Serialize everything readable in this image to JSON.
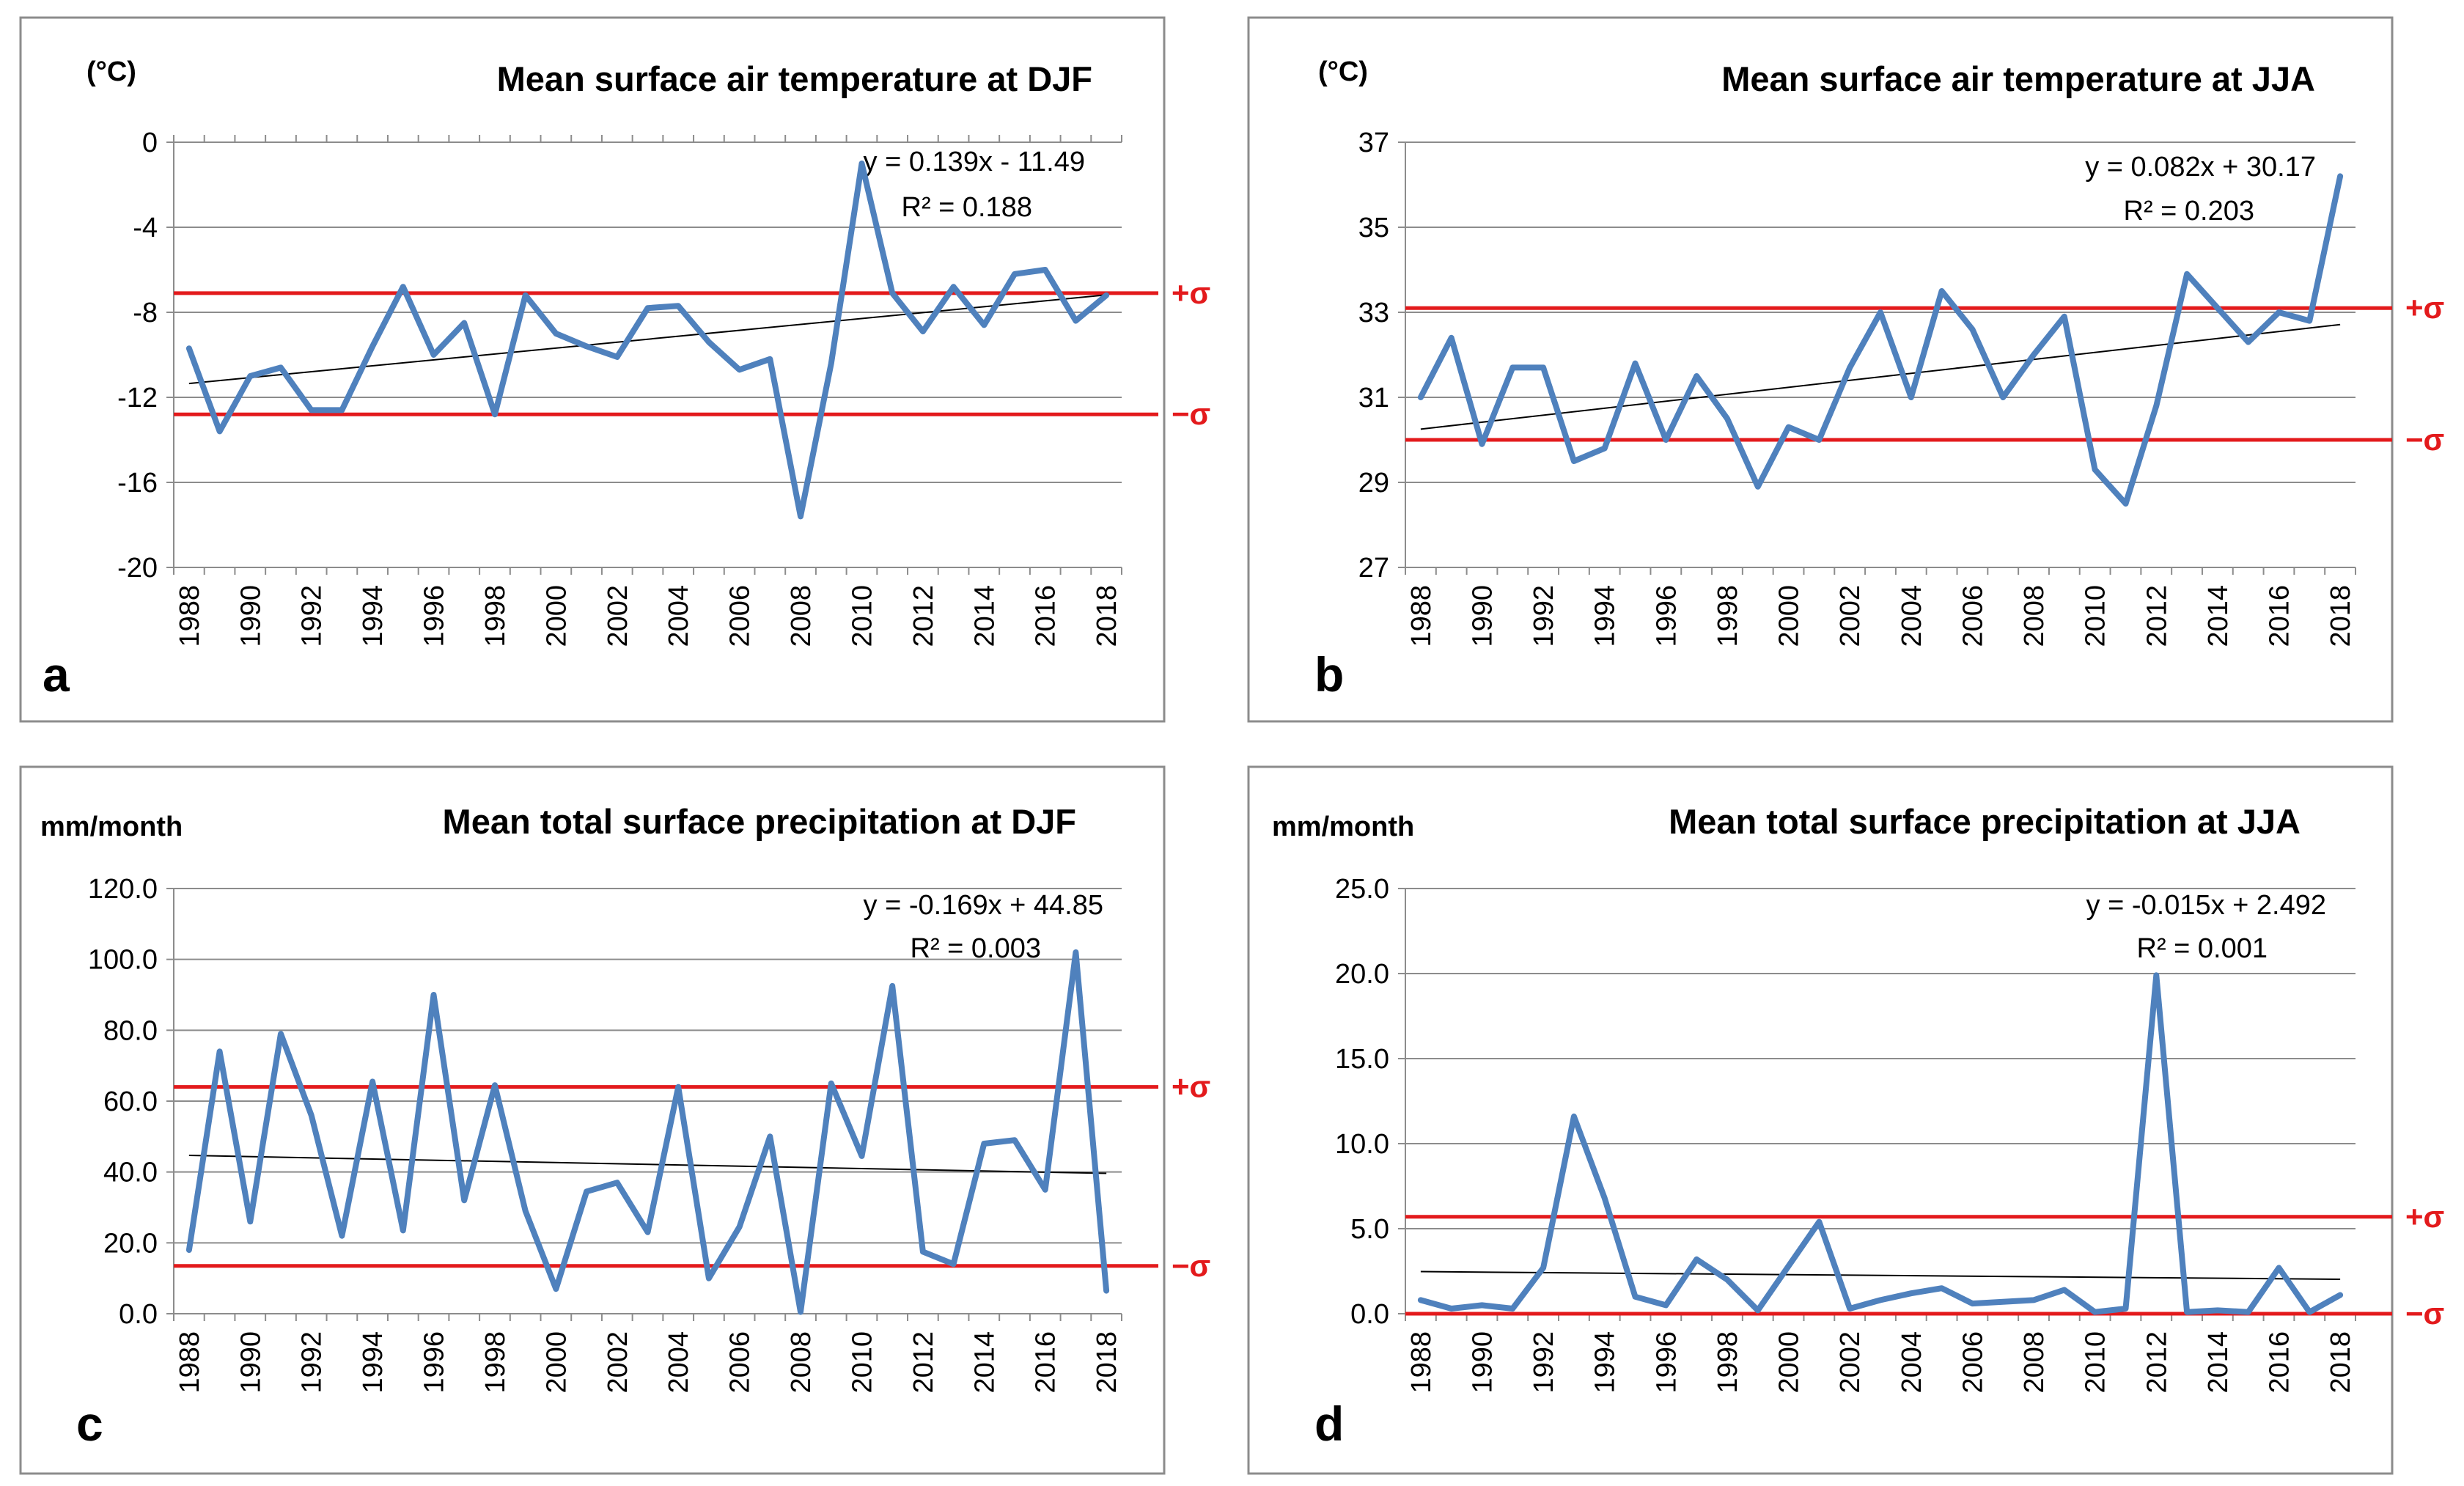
{
  "colors": {
    "series": "#4f81bd",
    "sigma": "#e31a1c",
    "trend": "#000000",
    "frame": "#8c8c8c"
  },
  "chart_data": [
    {
      "id": "a",
      "type": "line",
      "panel_label": "a",
      "title": "Mean surface air temperature at DJF",
      "unit": "(°C)",
      "ylim": [
        -20,
        0
      ],
      "yticks": [
        0,
        -4,
        -8,
        -12,
        -16,
        -20
      ],
      "ytick_labels": [
        "0",
        "-4",
        "-8",
        "-12",
        "-16",
        "-20"
      ],
      "x": [
        1988,
        1989,
        1990,
        1991,
        1992,
        1993,
        1994,
        1995,
        1996,
        1997,
        1998,
        1999,
        2000,
        2001,
        2002,
        2003,
        2004,
        2005,
        2006,
        2007,
        2008,
        2009,
        2010,
        2011,
        2012,
        2013,
        2014,
        2015,
        2016,
        2017,
        2018
      ],
      "xtick_labels": [
        "1988",
        "1990",
        "1992",
        "1994",
        "1996",
        "1998",
        "2000",
        "2002",
        "2004",
        "2006",
        "2008",
        "2010",
        "2012",
        "2014",
        "2016",
        "2018"
      ],
      "values": [
        -9.7,
        -13.6,
        -11.0,
        -10.6,
        -12.6,
        -12.6,
        -9.6,
        -6.8,
        -10.0,
        -8.5,
        -12.8,
        -7.2,
        -9.0,
        -9.6,
        -10.1,
        -7.8,
        -7.7,
        -9.4,
        -10.7,
        -10.2,
        -17.6,
        -10.4,
        -1.0,
        -7.1,
        -8.9,
        -6.8,
        -8.6,
        -6.2,
        -6.0,
        -8.4,
        -7.2
      ],
      "trend": {
        "slope": 0.139,
        "intercept": -11.49
      },
      "trend_label": "y = 0.139x - 11.49",
      "r2_label": "R² = 0.188",
      "sigma_plus": -7.1,
      "sigma_minus": -12.8,
      "sigma_plus_label": "+σ",
      "sigma_minus_label": "−σ"
    },
    {
      "id": "b",
      "type": "line",
      "panel_label": "b",
      "title": "Mean surface air temperature at JJA",
      "unit": "(°C)",
      "ylim": [
        27,
        37
      ],
      "yticks": [
        37,
        35,
        33,
        31,
        29,
        27
      ],
      "ytick_labels": [
        "37",
        "35",
        "33",
        "31",
        "29",
        "27"
      ],
      "x": [
        1988,
        1989,
        1990,
        1991,
        1992,
        1993,
        1994,
        1995,
        1996,
        1997,
        1998,
        1999,
        2000,
        2001,
        2002,
        2003,
        2004,
        2005,
        2006,
        2007,
        2008,
        2009,
        2010,
        2011,
        2012,
        2013,
        2014,
        2015,
        2016,
        2017,
        2018
      ],
      "xtick_labels": [
        "1988",
        "1990",
        "1992",
        "1994",
        "1996",
        "1998",
        "2000",
        "2002",
        "2004",
        "2006",
        "2008",
        "2010",
        "2012",
        "2014",
        "2016",
        "2018"
      ],
      "values": [
        31.0,
        32.4,
        29.9,
        31.7,
        31.7,
        29.5,
        29.8,
        31.8,
        30.0,
        31.5,
        30.5,
        28.9,
        30.3,
        30.0,
        31.7,
        33.0,
        31.0,
        33.5,
        32.6,
        31.0,
        32.0,
        32.9,
        29.3,
        28.5,
        30.8,
        33.9,
        33.1,
        32.3,
        33.0,
        32.8,
        36.2
      ],
      "trend": {
        "slope": 0.082,
        "intercept": 30.17
      },
      "trend_label": "y = 0.082x + 30.17",
      "r2_label": "R² = 0.203",
      "sigma_plus": 33.1,
      "sigma_minus": 30.0,
      "sigma_plus_label": "+σ",
      "sigma_minus_label": "−σ"
    },
    {
      "id": "c",
      "type": "line",
      "panel_label": "c",
      "title": "Mean total surface precipitation at DJF",
      "unit": "mm/month",
      "ylim": [
        0,
        120
      ],
      "yticks": [
        120,
        100,
        80,
        60,
        40,
        20,
        0
      ],
      "ytick_labels": [
        "120.0",
        "100.0",
        "80.0",
        "60.0",
        "40.0",
        "20.0",
        "0.0"
      ],
      "x": [
        1988,
        1989,
        1990,
        1991,
        1992,
        1993,
        1994,
        1995,
        1996,
        1997,
        1998,
        1999,
        2000,
        2001,
        2002,
        2003,
        2004,
        2005,
        2006,
        2007,
        2008,
        2009,
        2010,
        2011,
        2012,
        2013,
        2014,
        2015,
        2016,
        2017,
        2018
      ],
      "xtick_labels": [
        "1988",
        "1990",
        "1992",
        "1994",
        "1996",
        "1998",
        "2000",
        "2002",
        "2004",
        "2006",
        "2008",
        "2010",
        "2012",
        "2014",
        "2016",
        "2018"
      ],
      "values": [
        18.0,
        74.0,
        26.0,
        79.0,
        56.0,
        22.0,
        65.5,
        23.5,
        90.0,
        32.0,
        64.5,
        29.0,
        7.0,
        34.5,
        37.0,
        23.0,
        64.0,
        10.0,
        24.5,
        50.0,
        0.5,
        65.0,
        44.5,
        92.5,
        17.5,
        14.0,
        48.0,
        49.0,
        35.0,
        102.0,
        6.5
      ],
      "trend": {
        "slope": -0.169,
        "intercept": 44.85
      },
      "trend_label": "y = -0.169x + 44.85",
      "r2_label": "R² = 0.003",
      "sigma_plus": 64.0,
      "sigma_minus": 13.5,
      "sigma_plus_label": "+σ",
      "sigma_minus_label": "−σ"
    },
    {
      "id": "d",
      "type": "line",
      "panel_label": "d",
      "title": "Mean total surface precipitation at JJA",
      "unit": "mm/month",
      "ylim": [
        0,
        25
      ],
      "yticks": [
        25,
        20,
        15,
        10,
        5,
        0
      ],
      "ytick_labels": [
        "25.0",
        "20.0",
        "15.0",
        "10.0",
        "5.0",
        "0.0"
      ],
      "x": [
        1988,
        1989,
        1990,
        1991,
        1992,
        1993,
        1994,
        1995,
        1996,
        1997,
        1998,
        1999,
        2000,
        2001,
        2002,
        2003,
        2004,
        2005,
        2006,
        2007,
        2008,
        2009,
        2010,
        2011,
        2012,
        2013,
        2014,
        2015,
        2016,
        2017,
        2018
      ],
      "xtick_labels": [
        "1988",
        "1990",
        "1992",
        "1994",
        "1996",
        "1998",
        "2000",
        "2002",
        "2004",
        "2006",
        "2008",
        "2010",
        "2012",
        "2014",
        "2016",
        "2018"
      ],
      "values": [
        0.8,
        0.3,
        0.5,
        0.3,
        2.7,
        11.6,
        6.8,
        1.0,
        0.5,
        3.2,
        2.0,
        0.2,
        2.8,
        5.4,
        0.3,
        0.8,
        1.2,
        1.5,
        0.6,
        0.7,
        0.8,
        1.4,
        0.1,
        0.3,
        19.9,
        0.1,
        0.2,
        0.1,
        2.7,
        0.1,
        1.1
      ],
      "trend": {
        "slope": -0.015,
        "intercept": 2.492
      },
      "trend_label": "y = -0.015x + 2.492",
      "r2_label": "R² = 0.001",
      "sigma_plus": 5.7,
      "sigma_minus": 0.0,
      "sigma_plus_label": "+σ",
      "sigma_minus_label": "−σ"
    }
  ]
}
